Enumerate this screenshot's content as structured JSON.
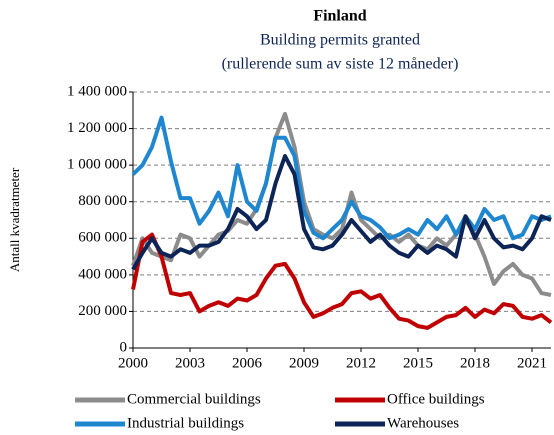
{
  "chart_data": {
    "type": "line",
    "title": "Finland",
    "subtitle": [
      "Building permits granted",
      "(rullerende sum av siste 12 måneder)"
    ],
    "y_label": "Antall kvadratmeter",
    "x": [
      2000,
      2000.5,
      2001,
      2001.5,
      2002,
      2002.5,
      2003,
      2003.5,
      2004,
      2004.5,
      2005,
      2005.5,
      2006,
      2006.5,
      2007,
      2007.5,
      2008,
      2008.5,
      2009,
      2009.5,
      2010,
      2010.5,
      2011,
      2011.5,
      2012,
      2012.5,
      2013,
      2013.5,
      2014,
      2014.5,
      2015,
      2015.5,
      2016,
      2016.5,
      2017,
      2017.5,
      2018,
      2018.5,
      2019,
      2019.5,
      2020,
      2020.5,
      2021,
      2021.5,
      2022
    ],
    "series": [
      {
        "name": "Commercial buildings",
        "color": "#8c8c8c",
        "values": [
          450000,
          600000,
          520000,
          500000,
          480000,
          620000,
          600000,
          500000,
          560000,
          620000,
          640000,
          700000,
          680000,
          760000,
          900000,
          1150000,
          1280000,
          1100000,
          800000,
          650000,
          620000,
          600000,
          650000,
          850000,
          700000,
          650000,
          600000,
          620000,
          580000,
          620000,
          560000,
          540000,
          600000,
          560000,
          620000,
          700000,
          620000,
          500000,
          350000,
          420000,
          460000,
          400000,
          380000,
          300000,
          290000
        ]
      },
      {
        "name": "Office buildings",
        "color": "#c00000",
        "values": [
          320000,
          580000,
          620000,
          500000,
          300000,
          290000,
          300000,
          200000,
          230000,
          250000,
          230000,
          270000,
          260000,
          290000,
          380000,
          450000,
          460000,
          380000,
          250000,
          170000,
          190000,
          220000,
          240000,
          300000,
          310000,
          270000,
          290000,
          220000,
          160000,
          150000,
          120000,
          110000,
          140000,
          170000,
          180000,
          220000,
          170000,
          210000,
          190000,
          240000,
          230000,
          170000,
          160000,
          180000,
          140000
        ]
      },
      {
        "name": "Industrial buildings",
        "color": "#1f86d0",
        "values": [
          950000,
          1000000,
          1100000,
          1260000,
          1020000,
          820000,
          820000,
          680000,
          750000,
          850000,
          720000,
          1000000,
          800000,
          750000,
          900000,
          1150000,
          1150000,
          1050000,
          750000,
          630000,
          600000,
          650000,
          700000,
          800000,
          720000,
          700000,
          660000,
          600000,
          620000,
          650000,
          620000,
          700000,
          650000,
          720000,
          620000,
          720000,
          650000,
          760000,
          700000,
          720000,
          600000,
          620000,
          720000,
          700000,
          720000
        ]
      },
      {
        "name": "Warehouses",
        "color": "#0d2456",
        "values": [
          430000,
          520000,
          600000,
          520000,
          500000,
          540000,
          520000,
          560000,
          560000,
          580000,
          650000,
          760000,
          720000,
          650000,
          700000,
          900000,
          1050000,
          950000,
          650000,
          550000,
          540000,
          560000,
          620000,
          700000,
          640000,
          580000,
          620000,
          560000,
          520000,
          500000,
          560000,
          520000,
          560000,
          540000,
          500000,
          720000,
          600000,
          700000,
          600000,
          550000,
          560000,
          540000,
          600000,
          720000,
          700000
        ]
      }
    ],
    "xlim": [
      2000,
      2022
    ],
    "xticks": [
      2000,
      2003,
      2006,
      2009,
      2012,
      2015,
      2018,
      2021
    ],
    "ylim": [
      0,
      1400000
    ],
    "yticks": [
      0,
      {
        "value": 200000,
        "label": "200 000"
      },
      {
        "value": 400000,
        "label": "400 000"
      },
      {
        "value": 600000,
        "label": "600 000"
      },
      {
        "value": 800000,
        "label": "800 000"
      },
      {
        "value": 1000000,
        "label": "1 000 000"
      },
      {
        "value": 1200000,
        "label": "1 200 000"
      },
      {
        "value": 1400000,
        "label": "1 400 000"
      }
    ],
    "grid": true
  }
}
